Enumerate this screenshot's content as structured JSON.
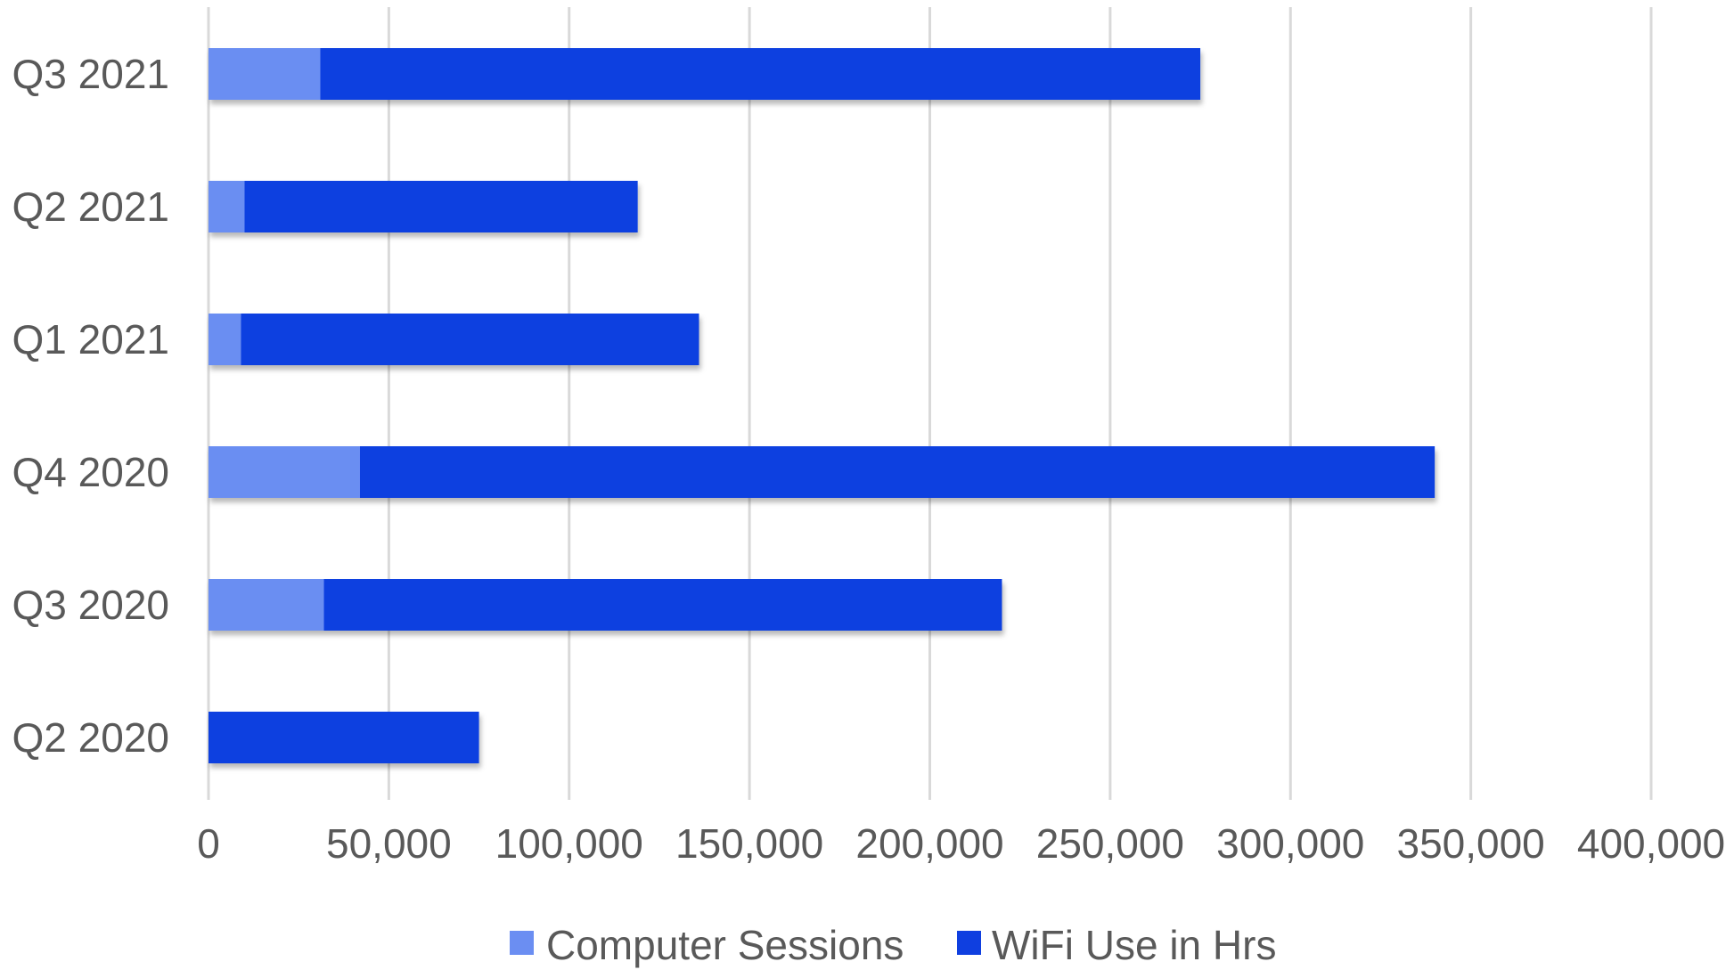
{
  "chart_data": {
    "type": "bar",
    "orientation": "horizontal",
    "stacked": true,
    "title": "",
    "xlabel": "",
    "ylabel": "",
    "categories": [
      "Q3 2021",
      "Q2 2021",
      "Q1 2021",
      "Q4 2020",
      "Q3 2020",
      "Q2 2020"
    ],
    "series": [
      {
        "name": "Computer Sessions",
        "color": "#6b8ef2",
        "values": [
          31000,
          10000,
          9000,
          42000,
          32000,
          0
        ]
      },
      {
        "name": "WiFi Use in Hrs",
        "color": "#0f3fe0",
        "values": [
          244000,
          109000,
          127000,
          298000,
          188000,
          75000
        ]
      }
    ],
    "xlim": [
      0,
      400000
    ],
    "xticks": [
      0,
      50000,
      100000,
      150000,
      200000,
      250000,
      300000,
      350000,
      400000
    ],
    "xtick_labels": [
      "0",
      "50,000",
      "100,000",
      "150,000",
      "200,000",
      "250,000",
      "300,000",
      "350,000",
      "400,000"
    ],
    "grid": "vertical",
    "legend_position": "bottom"
  }
}
